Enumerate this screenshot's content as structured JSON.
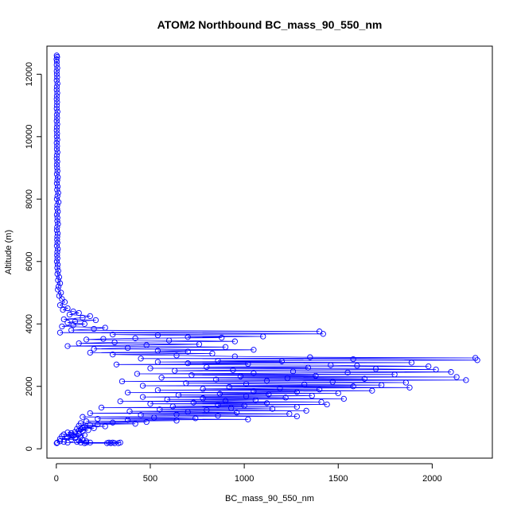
{
  "chart_data": {
    "type": "scatter",
    "title": "ATOM2 Northbound BC_mass_90_550_nm",
    "xlabel": "BC_mass_90_550_nm",
    "ylabel": "Altitude (m)",
    "xlim": [
      -50,
      2320
    ],
    "ylim": [
      -300,
      12900
    ],
    "x_ticks": [
      0,
      500,
      1000,
      1500,
      2000
    ],
    "y_ticks": [
      0,
      2000,
      4000,
      6000,
      8000,
      10000,
      12000
    ],
    "marker": "open-circle",
    "connected": true,
    "series_color": "#0000ff",
    "grid": false,
    "series": [
      {
        "points": [
          [
            2,
            12600
          ],
          [
            4,
            12550
          ],
          [
            1,
            12480
          ],
          [
            3,
            12400
          ],
          [
            2,
            12300
          ],
          [
            5,
            12200
          ],
          [
            2,
            12100
          ],
          [
            3,
            12000
          ],
          [
            4,
            11900
          ],
          [
            2,
            11800
          ],
          [
            6,
            11700
          ],
          [
            3,
            11600
          ],
          [
            2,
            11500
          ],
          [
            5,
            11400
          ],
          [
            3,
            11300
          ],
          [
            2,
            11200
          ],
          [
            4,
            11100
          ],
          [
            3,
            11000
          ],
          [
            2,
            10900
          ],
          [
            6,
            10800
          ],
          [
            3,
            10700
          ],
          [
            4,
            10600
          ],
          [
            2,
            10500
          ],
          [
            5,
            10400
          ],
          [
            3,
            10300
          ],
          [
            2,
            10200
          ],
          [
            4,
            10100
          ],
          [
            3,
            10000
          ],
          [
            5,
            9900
          ],
          [
            2,
            9800
          ],
          [
            4,
            9700
          ],
          [
            3,
            9600
          ],
          [
            6,
            9500
          ],
          [
            3,
            9400
          ],
          [
            2,
            9300
          ],
          [
            5,
            9200
          ],
          [
            3,
            9100
          ],
          [
            4,
            9000
          ],
          [
            6,
            8900
          ],
          [
            3,
            8800
          ],
          [
            8,
            8700
          ],
          [
            5,
            8600
          ],
          [
            3,
            8500
          ],
          [
            7,
            8400
          ],
          [
            4,
            8300
          ],
          [
            10,
            8200
          ],
          [
            6,
            8100
          ],
          [
            3,
            8000
          ],
          [
            12,
            7900
          ],
          [
            5,
            7800
          ],
          [
            4,
            7700
          ],
          [
            8,
            7600
          ],
          [
            3,
            7500
          ],
          [
            6,
            7400
          ],
          [
            5,
            7300
          ],
          [
            9,
            7200
          ],
          [
            4,
            7100
          ],
          [
            3,
            7000
          ],
          [
            7,
            6900
          ],
          [
            5,
            6800
          ],
          [
            4,
            6700
          ],
          [
            6,
            6600
          ],
          [
            3,
            6500
          ],
          [
            8,
            6400
          ],
          [
            5,
            6300
          ],
          [
            4,
            6200
          ],
          [
            6,
            6100
          ],
          [
            3,
            6000
          ],
          [
            7,
            5900
          ],
          [
            5,
            5800
          ],
          [
            10,
            5700
          ],
          [
            6,
            5600
          ],
          [
            15,
            5500
          ],
          [
            9,
            5400
          ],
          [
            20,
            5300
          ],
          [
            12,
            5200
          ],
          [
            8,
            5100
          ],
          [
            25,
            5000
          ],
          [
            15,
            4900
          ],
          [
            30,
            4800
          ],
          [
            45,
            4700
          ],
          [
            20,
            4600
          ],
          [
            60,
            4500
          ],
          [
            35,
            4450
          ],
          [
            90,
            4400
          ],
          [
            120,
            4350
          ],
          [
            70,
            4300
          ],
          [
            180,
            4250
          ],
          [
            140,
            4200
          ],
          [
            40,
            4150
          ],
          [
            210,
            4120
          ],
          [
            100,
            4080
          ],
          [
            60,
            4040
          ],
          [
            150,
            4000
          ],
          [
            90,
            3960
          ],
          [
            30,
            3920
          ],
          [
            260,
            3880
          ],
          [
            200,
            3840
          ],
          [
            80,
            3800
          ],
          [
            1400,
            3760
          ],
          [
            20,
            3720
          ],
          [
            1420,
            3680
          ],
          [
            300,
            3660
          ],
          [
            540,
            3640
          ],
          [
            1100,
            3600
          ],
          [
            700,
            3580
          ],
          [
            880,
            3560
          ],
          [
            420,
            3540
          ],
          [
            250,
            3520
          ],
          [
            160,
            3500
          ],
          [
            600,
            3470
          ],
          [
            950,
            3440
          ],
          [
            310,
            3410
          ],
          [
            120,
            3380
          ],
          [
            760,
            3350
          ],
          [
            480,
            3320
          ],
          [
            60,
            3290
          ],
          [
            900,
            3260
          ],
          [
            380,
            3230
          ],
          [
            200,
            3200
          ],
          [
            1050,
            3170
          ],
          [
            540,
            3140
          ],
          [
            700,
            3110
          ],
          [
            180,
            3080
          ],
          [
            830,
            3050
          ],
          [
            300,
            3020
          ],
          [
            640,
            2990
          ],
          [
            950,
            2960
          ],
          [
            1350,
            2930
          ],
          [
            2230,
            2910
          ],
          [
            450,
            2890
          ],
          [
            1580,
            2870
          ],
          [
            2240,
            2840
          ],
          [
            860,
            2820
          ],
          [
            1200,
            2800
          ],
          [
            540,
            2780
          ],
          [
            1890,
            2760
          ],
          [
            700,
            2740
          ],
          [
            1020,
            2720
          ],
          [
            320,
            2700
          ],
          [
            1460,
            2680
          ],
          [
            1600,
            2660
          ],
          [
            1980,
            2640
          ],
          [
            800,
            2620
          ],
          [
            1340,
            2600
          ],
          [
            500,
            2580
          ],
          [
            1700,
            2560
          ],
          [
            2020,
            2540
          ],
          [
            940,
            2520
          ],
          [
            630,
            2500
          ],
          [
            1260,
            2480
          ],
          [
            2100,
            2460
          ],
          [
            1550,
            2440
          ],
          [
            1050,
            2420
          ],
          [
            430,
            2400
          ],
          [
            1800,
            2380
          ],
          [
            720,
            2360
          ],
          [
            1380,
            2340
          ],
          [
            980,
            2320
          ],
          [
            2130,
            2300
          ],
          [
            560,
            2280
          ],
          [
            1230,
            2260
          ],
          [
            1640,
            2240
          ],
          [
            850,
            2220
          ],
          [
            2180,
            2200
          ],
          [
            1120,
            2180
          ],
          [
            350,
            2160
          ],
          [
            1470,
            2140
          ],
          [
            1860,
            2120
          ],
          [
            690,
            2100
          ],
          [
            1010,
            2080
          ],
          [
            1320,
            2060
          ],
          [
            1730,
            2040
          ],
          [
            460,
            2020
          ],
          [
            1580,
            2000
          ],
          [
            920,
            1980
          ],
          [
            1880,
            1960
          ],
          [
            1190,
            1940
          ],
          [
            780,
            1920
          ],
          [
            1400,
            1900
          ],
          [
            540,
            1880
          ],
          [
            1680,
            1860
          ],
          [
            1050,
            1840
          ],
          [
            1280,
            1820
          ],
          [
            380,
            1800
          ],
          [
            1500,
            1780
          ],
          [
            870,
            1760
          ],
          [
            1130,
            1740
          ],
          [
            650,
            1720
          ],
          [
            1360,
            1700
          ],
          [
            1010,
            1680
          ],
          [
            460,
            1660
          ],
          [
            1220,
            1640
          ],
          [
            780,
            1620
          ],
          [
            1530,
            1600
          ],
          [
            590,
            1580
          ],
          [
            1060,
            1560
          ],
          [
            900,
            1540
          ],
          [
            340,
            1520
          ],
          [
            1410,
            1500
          ],
          [
            730,
            1480
          ],
          [
            1120,
            1460
          ],
          [
            500,
            1440
          ],
          [
            1440,
            1420
          ],
          [
            860,
            1400
          ],
          [
            1000,
            1380
          ],
          [
            620,
            1360
          ],
          [
            1280,
            1340
          ],
          [
            240,
            1320
          ],
          [
            930,
            1300
          ],
          [
            1150,
            1280
          ],
          [
            550,
            1260
          ],
          [
            800,
            1240
          ],
          [
            1330,
            1220
          ],
          [
            390,
            1200
          ],
          [
            700,
            1180
          ],
          [
            960,
            1160
          ],
          [
            180,
            1140
          ],
          [
            1240,
            1120
          ],
          [
            640,
            1100
          ],
          [
            450,
            1080
          ],
          [
            860,
            1060
          ],
          [
            1280,
            1040
          ],
          [
            140,
            1020
          ],
          [
            520,
            1000
          ],
          [
            740,
            980
          ],
          [
            220,
            960
          ],
          [
            1020,
            940
          ],
          [
            380,
            920
          ],
          [
            640,
            900
          ],
          [
            160,
            880
          ],
          [
            480,
            860
          ],
          [
            300,
            840
          ],
          [
            130,
            820
          ],
          [
            420,
            800
          ],
          [
            220,
            780
          ],
          [
            180,
            760
          ],
          [
            120,
            740
          ],
          [
            260,
            720
          ],
          [
            150,
            700
          ],
          [
            140,
            680
          ],
          [
            200,
            660
          ],
          [
            110,
            640
          ],
          [
            130,
            620
          ],
          [
            170,
            600
          ],
          [
            120,
            580
          ],
          [
            140,
            560
          ],
          [
            100,
            540
          ],
          [
            60,
            520
          ],
          [
            80,
            500
          ],
          [
            120,
            480
          ],
          [
            40,
            460
          ],
          [
            150,
            440
          ],
          [
            90,
            420
          ],
          [
            30,
            400
          ],
          [
            130,
            380
          ],
          [
            60,
            360
          ],
          [
            100,
            340
          ],
          [
            20,
            320
          ],
          [
            80,
            300
          ],
          [
            140,
            280
          ],
          [
            120,
            260
          ],
          [
            160,
            240
          ],
          [
            110,
            220
          ],
          [
            130,
            200
          ],
          [
            150,
            180
          ],
          [
            270,
            180
          ],
          [
            290,
            180
          ],
          [
            310,
            180
          ],
          [
            330,
            180
          ],
          [
            340,
            200
          ],
          [
            300,
            200
          ],
          [
            280,
            200
          ],
          [
            180,
            200
          ],
          [
            160,
            200
          ],
          [
            60,
            200
          ],
          [
            40,
            220
          ],
          [
            20,
            240
          ],
          [
            5,
            200
          ],
          [
            2,
            180
          ]
        ]
      }
    ]
  }
}
